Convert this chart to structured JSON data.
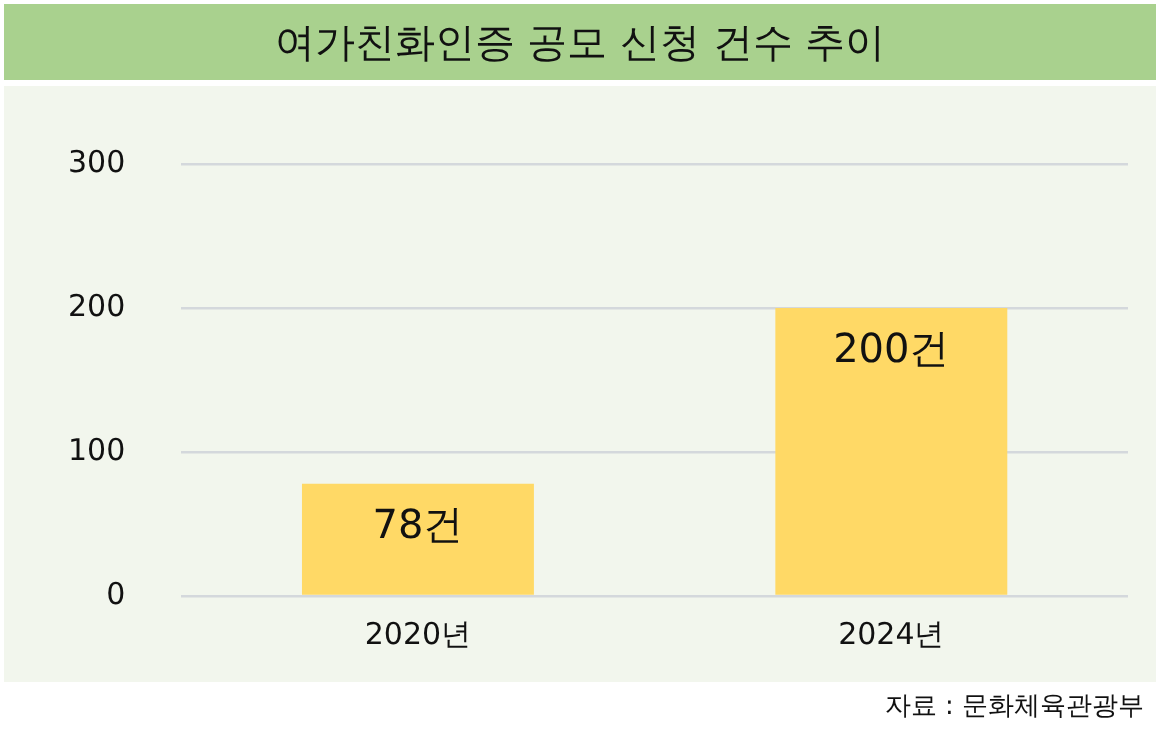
{
  "chart_data": {
    "type": "bar",
    "title": "여가친화인증 공모 신청 건수 추이",
    "categories": [
      "2020년",
      "2024년"
    ],
    "values": [
      78,
      200
    ],
    "value_labels": [
      "78건",
      "200건"
    ],
    "color": "#ffd966",
    "ylim": [
      0,
      300
    ],
    "yticks": [
      0,
      100,
      200,
      300
    ],
    "grid": "y",
    "legend": false,
    "annotations": [
      "자료 : 문화체육관광부"
    ]
  }
}
